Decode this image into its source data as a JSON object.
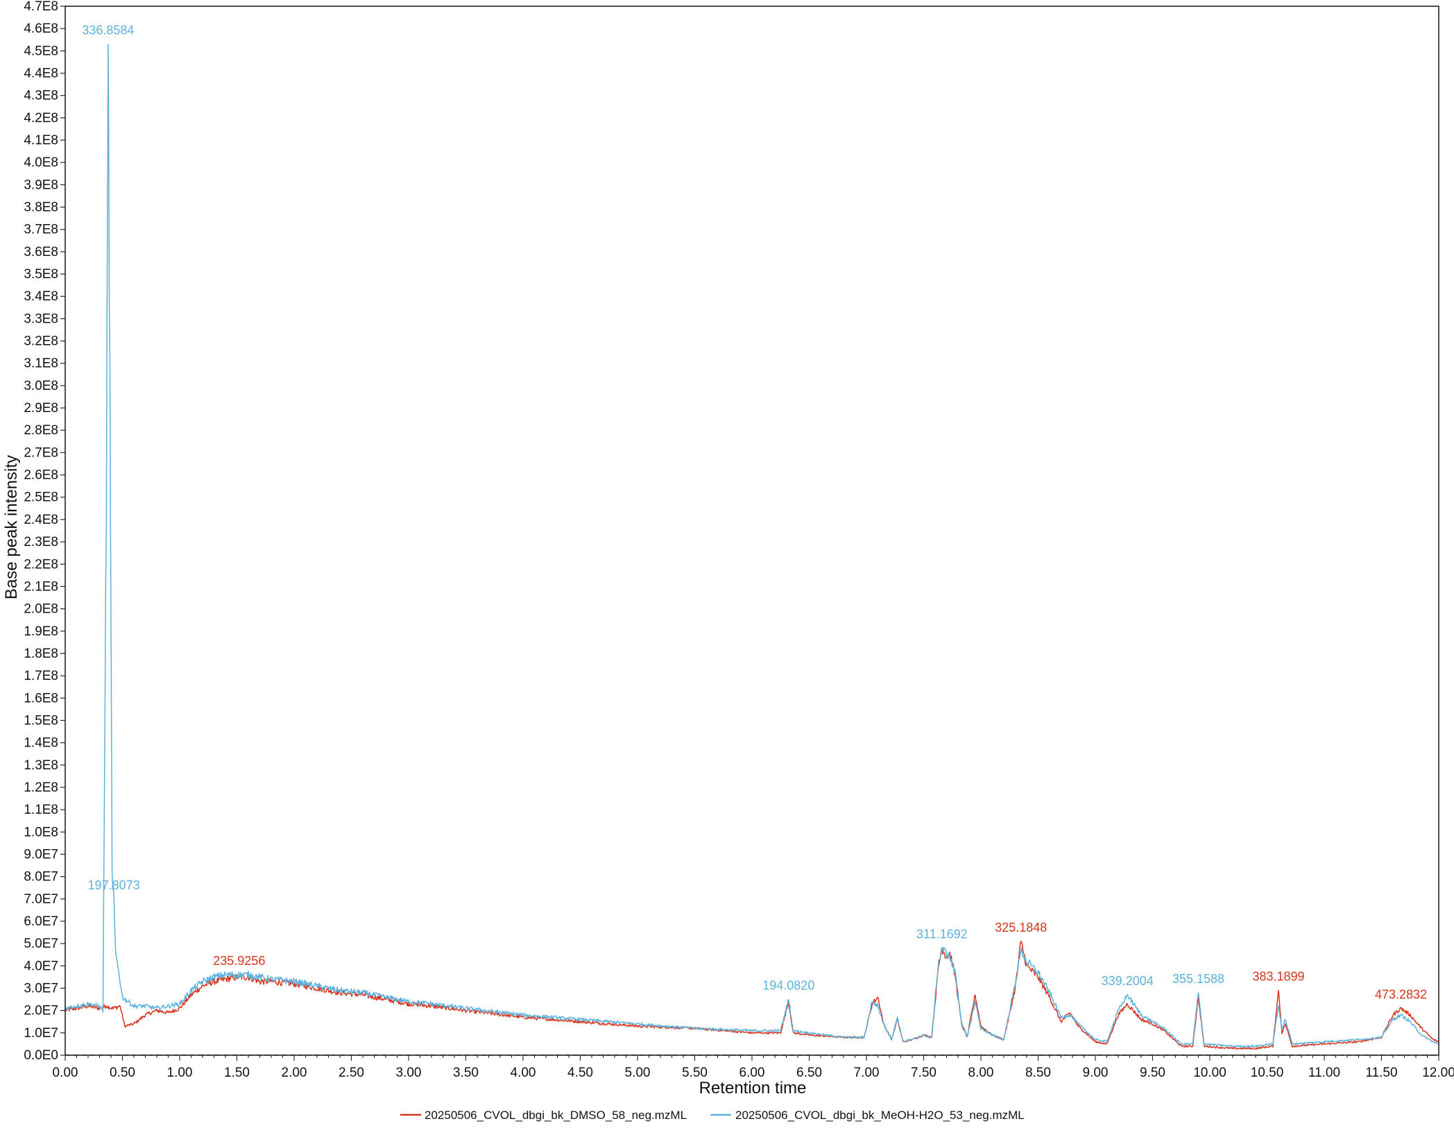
{
  "chart_data": {
    "type": "line",
    "xlabel": "Retention time",
    "ylabel": "Base peak intensity",
    "xlim": [
      0,
      12
    ],
    "ylim": [
      0,
      470000000
    ],
    "x_ticks": {
      "start": 0,
      "end": 12,
      "step": 0.5,
      "format": "0.00"
    },
    "y_ticks": {
      "start": 0,
      "end": 470000000,
      "step": 10000000
    },
    "y_tick_labels": [
      "0.0E0",
      "1.0E7",
      "2.0E7",
      "3.0E7",
      "4.0E7",
      "5.0E7",
      "6.0E7",
      "7.0E7",
      "8.0E7",
      "9.0E7",
      "1.0E8",
      "1.1E8",
      "1.2E8",
      "1.3E8",
      "1.4E8",
      "1.5E8",
      "1.6E8",
      "1.7E8",
      "1.8E8",
      "1.9E8",
      "2.0E8",
      "2.1E8",
      "2.2E8",
      "2.3E8",
      "2.4E8",
      "2.5E8",
      "2.6E8",
      "2.7E8",
      "2.8E8",
      "2.9E8",
      "3.0E8",
      "3.1E8",
      "3.2E8",
      "3.3E8",
      "3.4E8",
      "3.5E8",
      "3.6E8",
      "3.7E8",
      "3.8E8",
      "3.9E8",
      "4.0E8",
      "4.1E8",
      "4.2E8",
      "4.3E8",
      "4.4E8",
      "4.5E8",
      "4.6E8",
      "4.7E8"
    ],
    "x_tick_labels": [
      "0.00",
      "0.50",
      "1.00",
      "1.50",
      "2.00",
      "2.50",
      "3.00",
      "3.50",
      "4.00",
      "4.50",
      "5.00",
      "5.50",
      "6.00",
      "6.50",
      "7.00",
      "7.50",
      "8.00",
      "8.50",
      "9.00",
      "9.50",
      "10.00",
      "10.50",
      "11.00",
      "11.50",
      "12.00"
    ],
    "legend_position": "bottom-center",
    "grid": false,
    "series": [
      {
        "name": "20250506_CVOL_dbgi_bk_DMSO_58_neg.mzML",
        "color": "#d9341c",
        "points": [
          [
            0,
            20000000
          ],
          [
            0.1,
            21000000
          ],
          [
            0.2,
            22000000
          ],
          [
            0.3,
            21000000
          ],
          [
            0.36,
            22000000
          ],
          [
            0.42,
            21000000
          ],
          [
            0.48,
            22000000
          ],
          [
            0.52,
            13000000
          ],
          [
            0.6,
            14000000
          ],
          [
            0.7,
            18000000
          ],
          [
            0.8,
            20000000
          ],
          [
            0.9,
            19000000
          ],
          [
            1.0,
            21000000
          ],
          [
            1.1,
            27000000
          ],
          [
            1.2,
            31000000
          ],
          [
            1.3,
            33000000
          ],
          [
            1.4,
            34000000
          ],
          [
            1.5,
            35000000
          ],
          [
            1.6,
            35000000
          ],
          [
            1.7,
            33000000
          ],
          [
            1.8,
            33000000
          ],
          [
            2.0,
            32000000
          ],
          [
            2.2,
            30000000
          ],
          [
            2.4,
            28000000
          ],
          [
            2.6,
            27000000
          ],
          [
            2.8,
            25000000
          ],
          [
            3.0,
            23000000
          ],
          [
            3.2,
            22000000
          ],
          [
            3.5,
            20000000
          ],
          [
            4.0,
            17000000
          ],
          [
            4.5,
            15000000
          ],
          [
            5.0,
            13000000
          ],
          [
            5.5,
            12000000
          ],
          [
            6.0,
            10000000
          ],
          [
            6.25,
            10000000
          ],
          [
            6.32,
            24000000
          ],
          [
            6.36,
            10000000
          ],
          [
            6.5,
            9000000
          ],
          [
            6.8,
            8000000
          ],
          [
            6.98,
            8000000
          ],
          [
            7.05,
            23000000
          ],
          [
            7.1,
            26000000
          ],
          [
            7.15,
            14000000
          ],
          [
            7.22,
            7000000
          ],
          [
            7.27,
            16000000
          ],
          [
            7.32,
            6000000
          ],
          [
            7.4,
            7000000
          ],
          [
            7.5,
            9000000
          ],
          [
            7.57,
            8000000
          ],
          [
            7.63,
            40000000
          ],
          [
            7.66,
            48000000
          ],
          [
            7.7,
            44000000
          ],
          [
            7.73,
            46000000
          ],
          [
            7.78,
            34000000
          ],
          [
            7.83,
            14000000
          ],
          [
            7.88,
            8000000
          ],
          [
            7.95,
            27000000
          ],
          [
            8.0,
            13000000
          ],
          [
            8.1,
            9000000
          ],
          [
            8.2,
            7000000
          ],
          [
            8.3,
            30000000
          ],
          [
            8.35,
            51000000
          ],
          [
            8.4,
            40000000
          ],
          [
            8.5,
            35000000
          ],
          [
            8.6,
            26000000
          ],
          [
            8.7,
            15000000
          ],
          [
            8.78,
            19000000
          ],
          [
            8.85,
            13000000
          ],
          [
            9.0,
            6000000
          ],
          [
            9.1,
            5000000
          ],
          [
            9.2,
            18000000
          ],
          [
            9.28,
            23000000
          ],
          [
            9.4,
            16000000
          ],
          [
            9.5,
            14000000
          ],
          [
            9.6,
            11000000
          ],
          [
            9.75,
            4000000
          ],
          [
            9.85,
            4000000
          ],
          [
            9.9,
            26000000
          ],
          [
            9.95,
            4000000
          ],
          [
            10.2,
            3000000
          ],
          [
            10.4,
            3000000
          ],
          [
            10.55,
            4000000
          ],
          [
            10.6,
            29000000
          ],
          [
            10.63,
            10000000
          ],
          [
            10.66,
            14000000
          ],
          [
            10.72,
            4000000
          ],
          [
            11.0,
            5000000
          ],
          [
            11.3,
            6000000
          ],
          [
            11.5,
            8000000
          ],
          [
            11.6,
            18000000
          ],
          [
            11.67,
            21000000
          ],
          [
            11.75,
            18000000
          ],
          [
            11.85,
            12000000
          ],
          [
            11.95,
            7000000
          ],
          [
            12.0,
            6000000
          ]
        ]
      },
      {
        "name": "20250506_CVOL_dbgi_bk_MeOH-H2O_53_neg.mzML",
        "color": "#5cb2dc",
        "points": [
          [
            0,
            21000000
          ],
          [
            0.1,
            22000000
          ],
          [
            0.2,
            23000000
          ],
          [
            0.3,
            22000000
          ],
          [
            0.33,
            20000000
          ],
          [
            0.36,
            250000000
          ],
          [
            0.375,
            453000000
          ],
          [
            0.39,
            300000000
          ],
          [
            0.41,
            80000000
          ],
          [
            0.425,
            70000000
          ],
          [
            0.44,
            45000000
          ],
          [
            0.46,
            40000000
          ],
          [
            0.5,
            26000000
          ],
          [
            0.6,
            22000000
          ],
          [
            0.7,
            22000000
          ],
          [
            0.8,
            21000000
          ],
          [
            0.9,
            22000000
          ],
          [
            1.0,
            23000000
          ],
          [
            1.1,
            29000000
          ],
          [
            1.2,
            33000000
          ],
          [
            1.3,
            35000000
          ],
          [
            1.4,
            36000000
          ],
          [
            1.5,
            36000000
          ],
          [
            1.6,
            36000000
          ],
          [
            1.7,
            35000000
          ],
          [
            1.8,
            34000000
          ],
          [
            2.0,
            33000000
          ],
          [
            2.2,
            31000000
          ],
          [
            2.4,
            29000000
          ],
          [
            2.6,
            28000000
          ],
          [
            2.8,
            26000000
          ],
          [
            3.0,
            24000000
          ],
          [
            3.2,
            23000000
          ],
          [
            3.5,
            21000000
          ],
          [
            4.0,
            18000000
          ],
          [
            4.5,
            16000000
          ],
          [
            5.0,
            14000000
          ],
          [
            5.5,
            12000000
          ],
          [
            6.0,
            11000000
          ],
          [
            6.25,
            11000000
          ],
          [
            6.32,
            25000000
          ],
          [
            6.36,
            11000000
          ],
          [
            6.5,
            10000000
          ],
          [
            6.8,
            8000000
          ],
          [
            6.98,
            8000000
          ],
          [
            7.05,
            24000000
          ],
          [
            7.1,
            22000000
          ],
          [
            7.15,
            14000000
          ],
          [
            7.22,
            7000000
          ],
          [
            7.27,
            17000000
          ],
          [
            7.32,
            6000000
          ],
          [
            7.4,
            7000000
          ],
          [
            7.5,
            9000000
          ],
          [
            7.57,
            8000000
          ],
          [
            7.63,
            42000000
          ],
          [
            7.66,
            47000000
          ],
          [
            7.7,
            46000000
          ],
          [
            7.73,
            44000000
          ],
          [
            7.78,
            36000000
          ],
          [
            7.83,
            15000000
          ],
          [
            7.88,
            8000000
          ],
          [
            7.95,
            24000000
          ],
          [
            8.0,
            12000000
          ],
          [
            8.1,
            9000000
          ],
          [
            8.2,
            7000000
          ],
          [
            8.3,
            32000000
          ],
          [
            8.35,
            47000000
          ],
          [
            8.4,
            42000000
          ],
          [
            8.5,
            37000000
          ],
          [
            8.6,
            28000000
          ],
          [
            8.7,
            17000000
          ],
          [
            8.78,
            18000000
          ],
          [
            8.85,
            14000000
          ],
          [
            9.0,
            7000000
          ],
          [
            9.1,
            6000000
          ],
          [
            9.2,
            20000000
          ],
          [
            9.28,
            27000000
          ],
          [
            9.4,
            18000000
          ],
          [
            9.5,
            15000000
          ],
          [
            9.6,
            12000000
          ],
          [
            9.75,
            5000000
          ],
          [
            9.85,
            5000000
          ],
          [
            9.9,
            28000000
          ],
          [
            9.95,
            5000000
          ],
          [
            10.2,
            4000000
          ],
          [
            10.4,
            4000000
          ],
          [
            10.55,
            5000000
          ],
          [
            10.6,
            22000000
          ],
          [
            10.63,
            12000000
          ],
          [
            10.66,
            16000000
          ],
          [
            10.72,
            5000000
          ],
          [
            11.0,
            6000000
          ],
          [
            11.3,
            7000000
          ],
          [
            11.5,
            8000000
          ],
          [
            11.6,
            16000000
          ],
          [
            11.67,
            18000000
          ],
          [
            11.75,
            15000000
          ],
          [
            11.85,
            9000000
          ],
          [
            11.95,
            6000000
          ],
          [
            12.0,
            5000000
          ]
        ]
      }
    ],
    "annotations": [
      {
        "text": "336.8584",
        "x": 0.375,
        "y": 453000000,
        "color": "#5cb2dc"
      },
      {
        "text": "197.8073",
        "x": 0.425,
        "y": 70000000,
        "color": "#5cb2dc"
      },
      {
        "text": "235.9256",
        "x": 1.52,
        "y": 36000000,
        "color": "#d9341c"
      },
      {
        "text": "194.0820",
        "x": 6.32,
        "y": 25000000,
        "color": "#5cb2dc"
      },
      {
        "text": "311.1692",
        "x": 7.66,
        "y": 48000000,
        "color": "#5cb2dc"
      },
      {
        "text": "325.1848",
        "x": 8.35,
        "y": 51000000,
        "color": "#d9341c"
      },
      {
        "text": "339.2004",
        "x": 9.28,
        "y": 27000000,
        "color": "#5cb2dc"
      },
      {
        "text": "355.1588",
        "x": 9.9,
        "y": 28000000,
        "color": "#5cb2dc"
      },
      {
        "text": "383.1899",
        "x": 10.6,
        "y": 29000000,
        "color": "#d9341c"
      },
      {
        "text": "473.2832",
        "x": 11.67,
        "y": 21000000,
        "color": "#d9341c"
      }
    ]
  }
}
